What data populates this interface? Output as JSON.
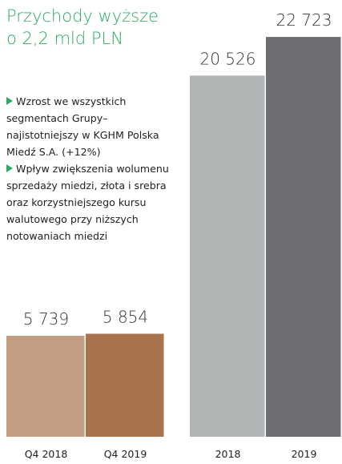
{
  "header": {
    "title": "Przychody wyższe o 2,2 mld PLN"
  },
  "bullets": [
    "Wzrost we wszystkich segmentach Grupy–najistotniejszy w KGHM Polska Miedź S.A. (+12%)",
    "Wpływ zwiększenia wolumenu sprzedaży miedzi, złota i srebra oraz korzystniejszego kursu walutowego przy niższych notowaniach miedzi"
  ],
  "chart_data": [
    {
      "type": "bar",
      "categories": [
        "Q4 2018",
        "Q4 2019"
      ],
      "values": [
        5739,
        5854
      ],
      "value_labels": [
        "5 739",
        "5 854"
      ],
      "colors": [
        "#c29d82",
        "#a7744e"
      ],
      "ylim": [
        0,
        23000
      ]
    },
    {
      "type": "bar",
      "categories": [
        "2018",
        "2019"
      ],
      "values": [
        20526,
        22723
      ],
      "value_labels": [
        "20 526",
        "22 723"
      ],
      "colors": [
        "#b2b5b6",
        "#6d6e71"
      ],
      "ylim": [
        0,
        23000
      ]
    }
  ]
}
